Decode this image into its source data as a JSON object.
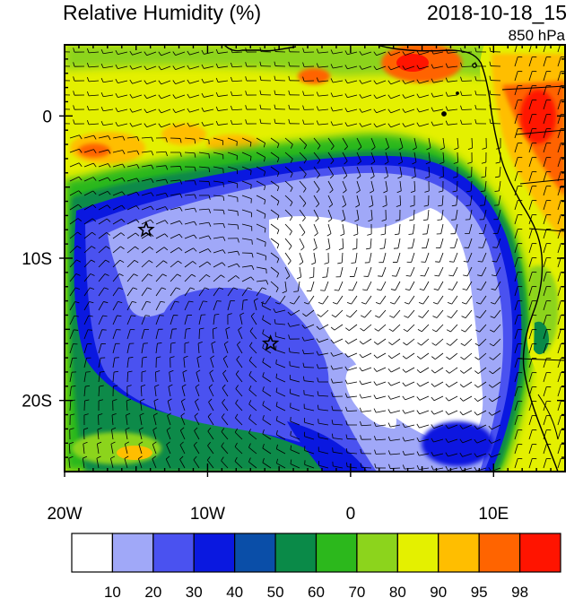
{
  "header": {
    "title": "Relative Humidity (%)",
    "datetime": "2018-10-18_15",
    "level": "850 hPa"
  },
  "map": {
    "projection": "lat-lon",
    "lon_range": [
      -20,
      15
    ],
    "lat_range": [
      -25,
      5
    ],
    "x_ticks": [
      {
        "lon": -20,
        "label": "20W"
      },
      {
        "lon": -10,
        "label": "10W"
      },
      {
        "lon": 0,
        "label": "0"
      },
      {
        "lon": 10,
        "label": "10E"
      }
    ],
    "y_ticks": [
      {
        "lat": 0,
        "label": "0"
      },
      {
        "lat": -10,
        "label": "10S"
      },
      {
        "lat": -20,
        "label": "20S"
      }
    ],
    "markers": [
      {
        "name": "star-marker",
        "lon": -14.3,
        "lat": -8.0
      },
      {
        "name": "star-marker",
        "lon": -5.6,
        "lat": -16.0
      }
    ],
    "wind_barbs": true,
    "coastline": "southwest-africa"
  },
  "colorbar": {
    "levels": [
      "10",
      "20",
      "30",
      "40",
      "50",
      "60",
      "70",
      "80",
      "90",
      "95",
      "98"
    ],
    "colors": [
      "#ffffff",
      "#a0a8f8",
      "#4a52f0",
      "#0a18e0",
      "#0a4ea8",
      "#0a8a48",
      "#2cb81c",
      "#8cd41c",
      "#e4f000",
      "#ffbe00",
      "#ff6400",
      "#ff1400"
    ]
  }
}
